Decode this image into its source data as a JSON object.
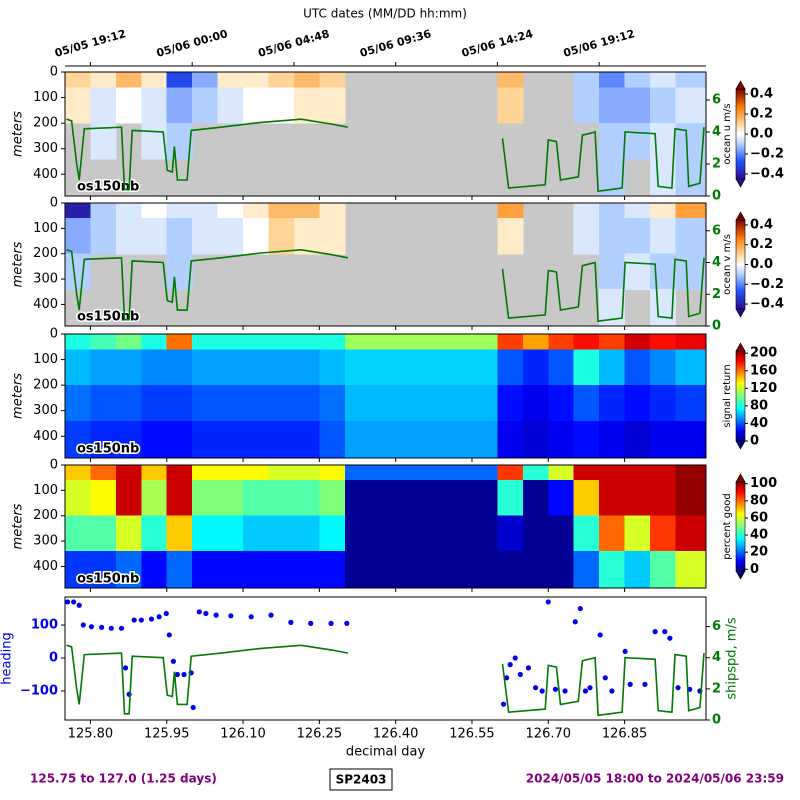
{
  "chart_data": [
    {
      "type": "heatmap",
      "label": "os150nb",
      "ylabel": "meters",
      "colorbar_label": "ocean u m/s",
      "colormap": "RdBu_r",
      "missing_color": "#c8c8c8",
      "x2label": "UTC dates (MM/DD hh:mm)",
      "x2ticks": [
        {
          "value": 125.8,
          "label": "05/05 19:12"
        },
        {
          "value": 126,
          "label": "05/06 00:00"
        },
        {
          "value": 126.2,
          "label": "05/06 04:48"
        },
        {
          "value": 126.4,
          "label": "05/06 09:36"
        },
        {
          "value": 126.6,
          "label": "05/06 14:24"
        },
        {
          "value": 126.8,
          "label": "05/06 19:12"
        }
      ],
      "xlim": [
        125.75,
        127.01
      ],
      "ylim": [
        485,
        0
      ],
      "yticks": [
        0,
        100,
        200,
        300,
        400
      ],
      "ship_speed_overlay": true,
      "y2lim": [
        0,
        7.75
      ],
      "y2ticks": [
        0,
        2,
        4,
        6
      ],
      "clim": [
        -0.45,
        0.45
      ],
      "cticks": [
        {
          "value": -0.4,
          "label": "−0.4"
        },
        {
          "value": -0.2,
          "label": "−0.2"
        },
        {
          "value": 0,
          "label": "0.0"
        },
        0.2,
        0.4
      ],
      "x_edges": [
        125.75,
        125.8,
        125.85,
        125.9,
        125.95,
        126,
        126.05,
        126.1,
        126.15,
        126.2,
        126.25,
        126.3,
        126.35,
        126.4,
        126.45,
        126.5,
        126.55,
        126.6,
        126.65,
        126.7,
        126.75,
        126.8,
        126.85,
        126.9,
        126.95,
        127.01
      ],
      "y_edges": [
        0,
        60,
        200,
        340,
        485
      ],
      "z": [
        [
          0.1,
          0.05,
          0.15,
          0.05,
          -0.3,
          -0.15,
          0.05,
          0.05,
          0.1,
          0.15,
          0.1,
          null,
          null,
          null,
          null,
          null,
          null,
          0.15,
          null,
          null,
          -0.1,
          -0.2,
          -0.1,
          -0.05,
          -0.1
        ],
        [
          0.05,
          -0.05,
          0,
          -0.05,
          -0.15,
          -0.1,
          -0.05,
          0,
          0,
          0.05,
          0.05,
          null,
          null,
          null,
          null,
          null,
          null,
          0.1,
          null,
          null,
          -0.1,
          -0.15,
          -0.15,
          -0.1,
          -0.05
        ],
        [
          null,
          -0.05,
          null,
          -0.05,
          -0.1,
          null,
          null,
          null,
          null,
          null,
          null,
          null,
          null,
          null,
          null,
          null,
          null,
          null,
          null,
          null,
          null,
          -0.1,
          -0.1,
          -0.05,
          -0.1
        ],
        [
          null,
          null,
          null,
          null,
          null,
          null,
          null,
          null,
          null,
          null,
          null,
          null,
          null,
          null,
          null,
          null,
          null,
          null,
          null,
          null,
          null,
          -0.1,
          null,
          -0.05,
          -0.1
        ]
      ]
    },
    {
      "type": "heatmap",
      "label": "os150nb",
      "ylabel": "meters",
      "colorbar_label": "ocean v m/s",
      "colormap": "RdBu_r",
      "missing_color": "#c8c8c8",
      "xlim": [
        125.75,
        127.01
      ],
      "ylim": [
        485,
        0
      ],
      "yticks": [
        0,
        100,
        200,
        300,
        400
      ],
      "ship_speed_overlay": true,
      "y2lim": [
        0,
        7.75
      ],
      "y2ticks": [
        0,
        2,
        4,
        6
      ],
      "clim": [
        -0.45,
        0.45
      ],
      "cticks": [
        {
          "value": -0.4,
          "label": "−0.4"
        },
        {
          "value": -0.2,
          "label": "−0.2"
        },
        {
          "value": 0,
          "label": "0.0"
        },
        0.2,
        0.4
      ],
      "z": [
        [
          -0.4,
          -0.1,
          -0.05,
          0,
          -0.05,
          -0.05,
          0,
          0.05,
          0.15,
          0.15,
          0.05,
          null,
          null,
          null,
          null,
          null,
          null,
          0.2,
          null,
          null,
          -0.05,
          -0.1,
          -0.05,
          0.05,
          0.2
        ],
        [
          -0.15,
          -0.1,
          -0.05,
          -0.05,
          -0.1,
          -0.05,
          -0.05,
          0,
          0.1,
          0.05,
          0.05,
          null,
          null,
          null,
          null,
          null,
          null,
          0.05,
          null,
          null,
          -0.05,
          -0.1,
          -0.1,
          -0.05,
          -0.1
        ],
        [
          -0.1,
          null,
          null,
          null,
          -0.1,
          null,
          null,
          null,
          null,
          null,
          null,
          null,
          null,
          null,
          null,
          null,
          null,
          null,
          null,
          null,
          null,
          -0.1,
          -0.05,
          -0.1,
          -0.1
        ],
        [
          null,
          null,
          null,
          null,
          null,
          null,
          null,
          null,
          null,
          null,
          null,
          null,
          null,
          null,
          null,
          null,
          null,
          null,
          null,
          null,
          null,
          -0.05,
          null,
          -0.05,
          null
        ]
      ]
    },
    {
      "type": "heatmap",
      "label": "os150nb",
      "ylabel": "meters",
      "colorbar_label": "signal return",
      "colormap": "jet",
      "xlim": [
        125.75,
        127.01
      ],
      "ylim": [
        485,
        0
      ],
      "yticks": [
        0,
        100,
        200,
        300,
        400
      ],
      "clim": [
        0,
        205
      ],
      "cticks": [
        0,
        40,
        80,
        120,
        160,
        200
      ],
      "z": [
        [
          80,
          90,
          100,
          80,
          160,
          80,
          80,
          80,
          80,
          80,
          80,
          110,
          110,
          110,
          110,
          110,
          110,
          170,
          150,
          170,
          180,
          170,
          190,
          180,
          185
        ],
        [
          60,
          55,
          55,
          50,
          50,
          55,
          55,
          55,
          55,
          55,
          60,
          65,
          65,
          65,
          65,
          65,
          65,
          40,
          30,
          40,
          80,
          60,
          40,
          50,
          60
        ],
        [
          45,
          40,
          40,
          35,
          35,
          40,
          40,
          40,
          40,
          40,
          45,
          60,
          60,
          60,
          60,
          60,
          60,
          25,
          20,
          25,
          40,
          30,
          25,
          30,
          35
        ],
        [
          35,
          30,
          30,
          25,
          25,
          30,
          30,
          30,
          30,
          30,
          40,
          55,
          55,
          55,
          55,
          55,
          55,
          20,
          15,
          20,
          25,
          20,
          15,
          20,
          20
        ]
      ]
    },
    {
      "type": "heatmap",
      "label": "os150nb",
      "ylabel": "meters",
      "colorbar_label": "percent good",
      "colormap": "jet",
      "xlim": [
        125.75,
        127.01
      ],
      "ylim": [
        485,
        0
      ],
      "yticks": [
        0,
        100,
        200,
        300,
        400
      ],
      "clim": [
        -2,
        102
      ],
      "cticks": [
        0,
        20,
        40,
        60,
        80,
        100
      ],
      "z": [
        [
          70,
          80,
          95,
          70,
          95,
          65,
          65,
          65,
          60,
          60,
          65,
          20,
          20,
          20,
          20,
          20,
          20,
          85,
          40,
          60,
          95,
          95,
          95,
          95,
          100
        ],
        [
          60,
          65,
          95,
          55,
          95,
          50,
          50,
          45,
          45,
          45,
          50,
          0,
          0,
          0,
          0,
          0,
          0,
          40,
          0,
          10,
          70,
          95,
          95,
          95,
          100
        ],
        [
          45,
          45,
          60,
          40,
          70,
          35,
          35,
          30,
          30,
          30,
          35,
          0,
          0,
          0,
          0,
          0,
          0,
          5,
          0,
          0,
          40,
          80,
          60,
          85,
          95
        ],
        [
          15,
          15,
          20,
          10,
          20,
          10,
          10,
          10,
          10,
          10,
          10,
          0,
          0,
          0,
          0,
          0,
          0,
          0,
          0,
          0,
          20,
          40,
          30,
          45,
          60
        ]
      ]
    },
    {
      "type": "combo",
      "xlabel": "decimal day",
      "ylabel": "heading",
      "y2label": "shipspd, m/s",
      "xlim": [
        125.75,
        127.01
      ],
      "xticks": [
        {
          "value": 125.8,
          "label": "125.80"
        },
        125.95,
        {
          "value": 126.1,
          "label": "126.10"
        },
        126.25,
        {
          "value": 126.4,
          "label": "126.40"
        },
        126.55,
        {
          "value": 126.7,
          "label": "126.70"
        },
        126.85
      ],
      "ylim": [
        -188,
        185
      ],
      "yticks": [
        {
          "value": -100,
          "label": "−100"
        },
        0,
        100
      ],
      "y2lim": [
        0,
        7.9
      ],
      "y2ticks": [
        0,
        2,
        4,
        6
      ],
      "series": [
        {
          "type": "scatter",
          "color": "#0000ee",
          "x": [
            125.755,
            125.767,
            125.778,
            125.786,
            125.802,
            125.822,
            125.841,
            125.861,
            125.869,
            125.876,
            125.886,
            125.9,
            125.92,
            125.935,
            125.949,
            125.955,
            125.963,
            125.971,
            125.984,
            125.998,
            126.002,
            126.014,
            126.027,
            126.047,
            126.076,
            126.116,
            126.155,
            126.194,
            126.233,
            126.273,
            126.304,
            126.612,
            126.618,
            126.625,
            126.635,
            126.645,
            126.661,
            126.675,
            126.688,
            126.7,
            126.714,
            126.733,
            126.753,
            126.763,
            126.773,
            126.782,
            126.802,
            126.812,
            126.825,
            126.851,
            126.861,
            126.89,
            126.91,
            126.929,
            126.939,
            126.955,
            126.978,
            126.998
          ],
          "values": [
            170,
            170,
            160,
            100,
            95,
            93,
            90,
            90,
            -30,
            -110,
            115,
            115,
            118,
            125,
            135,
            70,
            -10,
            -50,
            -50,
            -45,
            -150,
            140,
            135,
            130,
            128,
            125,
            130,
            108,
            105,
            105,
            105,
            -140,
            -60,
            -20,
            0,
            -50,
            -30,
            -90,
            -100,
            170,
            -95,
            -100,
            110,
            150,
            -100,
            -90,
            70,
            -60,
            -100,
            20,
            -80,
            -80,
            80,
            80,
            60,
            -90,
            -95,
            -100
          ]
        },
        {
          "type": "line",
          "color": "#007a00",
          "axis": "y2",
          "x": [
            125.753,
            125.763,
            125.773,
            125.778,
            125.788,
            125.861,
            125.867,
            125.876,
            125.882,
            125.943,
            125.951,
            125.961,
            125.965,
            125.971,
            125.99,
            125.998,
            126.057,
            126.135,
            126.214,
            126.273,
            126.306,
            null,
            126.61,
            126.622,
            126.694,
            126.7,
            126.716,
            126.724,
            126.759,
            126.767,
            126.792,
            126.798,
            126.845,
            126.851,
            126.91,
            126.916,
            126.943,
            126.949,
            126.971,
            126.976,
            126.998,
            127.006
          ],
          "values": [
            4.8,
            4.7,
            2,
            1,
            4.2,
            4.3,
            0.4,
            0.4,
            4.1,
            4,
            1.6,
            1.5,
            3.1,
            1,
            1,
            4.1,
            4.3,
            4.6,
            4.8,
            4.5,
            4.3,
            null,
            3.6,
            0.5,
            0.7,
            3.5,
            3.4,
            1,
            1.2,
            3.8,
            4,
            0.3,
            0.5,
            4,
            3.9,
            0.6,
            0.5,
            4.2,
            4.1,
            0.6,
            0.8,
            4.3
          ]
        }
      ]
    }
  ],
  "footer": {
    "left": "125.75 to 127.0 (1.25 days)",
    "center": "SP2403",
    "right": "2024/05/05 18:00 to 2024/05/06 23:59"
  }
}
